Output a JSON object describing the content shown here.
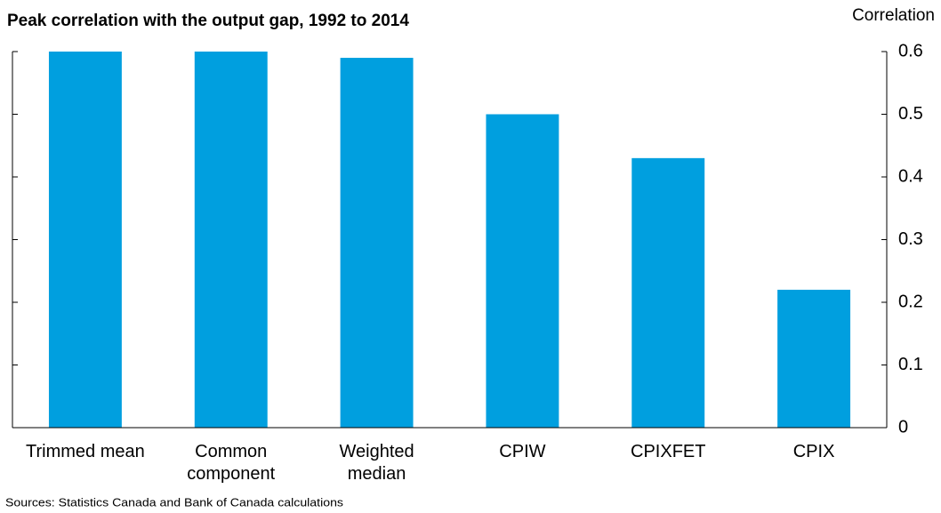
{
  "chart_data": {
    "type": "bar",
    "title": "Peak correlation with the output gap, 1992 to 2014",
    "y_axis_label": "Correlation",
    "source": "Sources: Statistics Canada and Bank of Canada calculations",
    "categories": [
      "Trimmed mean",
      "Common\ncomponent",
      "Weighted\nmedian",
      "CPIW",
      "CPIXFET",
      "CPIX"
    ],
    "values": [
      0.6,
      0.6,
      0.59,
      0.5,
      0.43,
      0.22
    ],
    "color": "#009fdf",
    "ylim": [
      0,
      0.6
    ],
    "yticks": [
      0,
      0.1,
      0.2,
      0.3,
      0.4,
      0.5,
      0.6
    ],
    "grid": false
  }
}
